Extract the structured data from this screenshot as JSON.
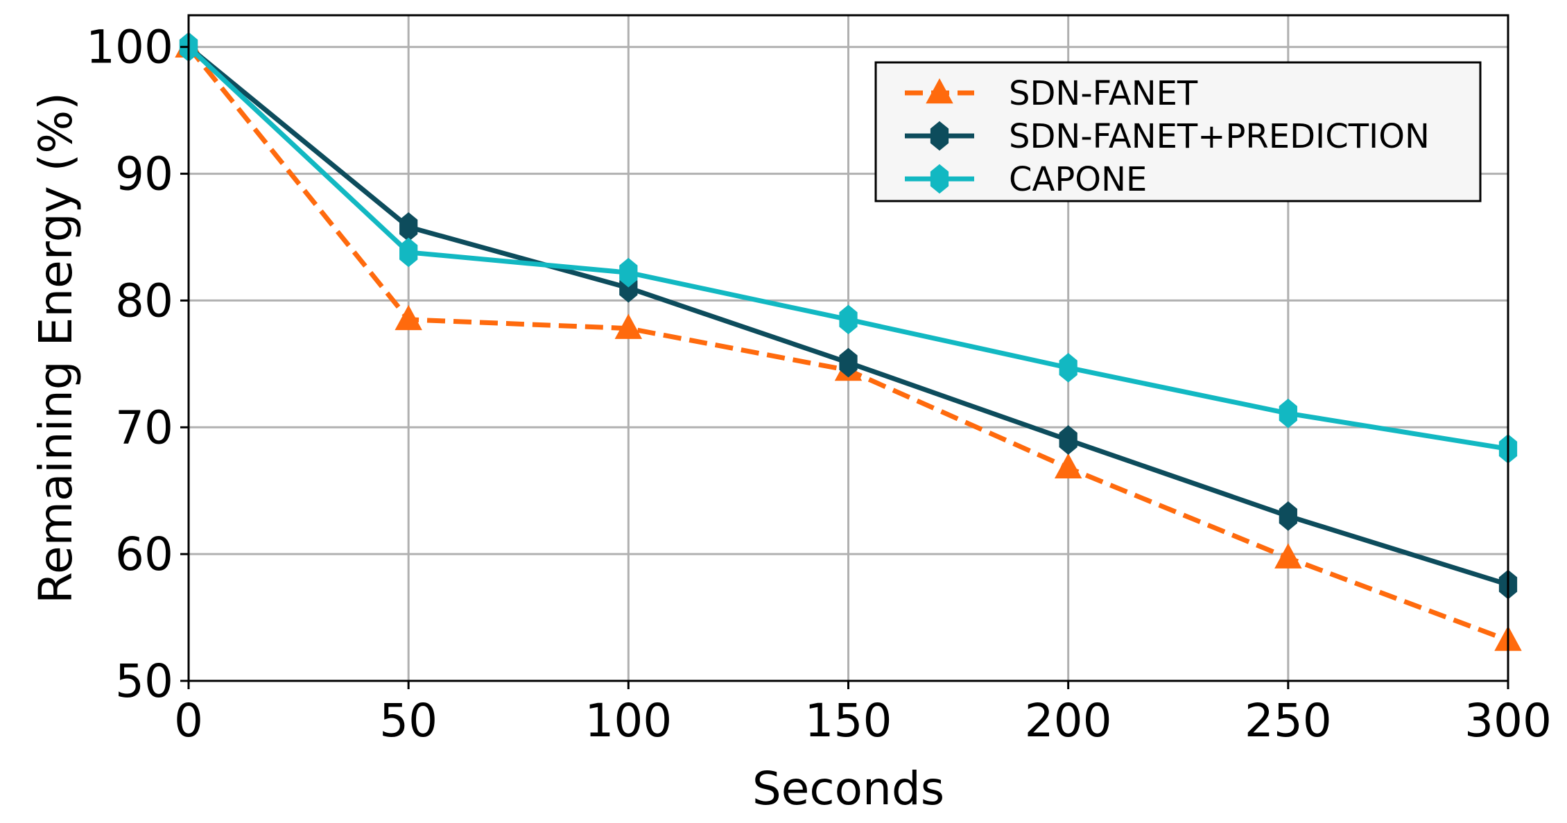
{
  "chart_data": {
    "type": "line",
    "title": "",
    "xlabel": "Seconds",
    "ylabel": "Remaining Energy (%)",
    "xlim": [
      0,
      300
    ],
    "ylim": [
      50,
      102.5
    ],
    "x_ticks": [
      "0",
      "50",
      "100",
      "150",
      "200",
      "250",
      "300"
    ],
    "y_ticks": [
      "50",
      "60",
      "70",
      "80",
      "90",
      "100"
    ],
    "grid": true,
    "legend_position": "top-right",
    "x": [
      0,
      50,
      100,
      150,
      200,
      250,
      300
    ],
    "series": [
      {
        "name": "SDN-FANET",
        "values": [
          100,
          78.5,
          77.8,
          74.5,
          66.8,
          59.7,
          53.2
        ],
        "color": "#ff6a0d",
        "line_style": "dashed",
        "marker": "triangle"
      },
      {
        "name": "SDN-FANET+PREDICTION",
        "values": [
          100,
          85.8,
          81.0,
          75.1,
          69.0,
          63.0,
          57.6
        ],
        "color": "#0d4c5c",
        "line_style": "solid",
        "marker": "hexagon"
      },
      {
        "name": "CAPONE",
        "values": [
          100,
          83.8,
          82.2,
          78.5,
          74.7,
          71.1,
          68.3
        ],
        "color": "#12b8c2",
        "line_style": "solid",
        "marker": "hexagon"
      }
    ]
  }
}
